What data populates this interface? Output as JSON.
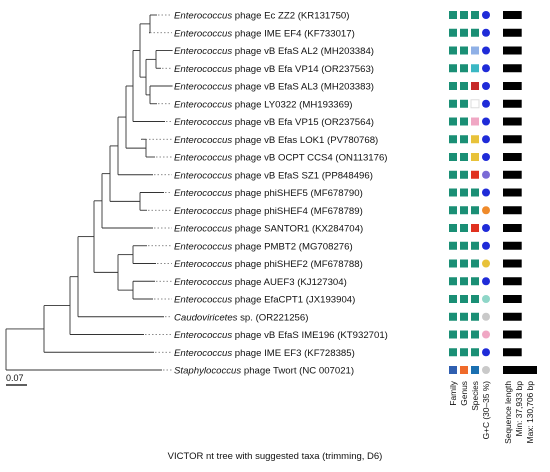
{
  "caption": "VICTOR nt tree with suggested taxa (trimming, D6)",
  "scale_bar": {
    "label": "0.07",
    "value": 0.07
  },
  "colors": {
    "family_teal": "#1a8f75",
    "family_outgroup": "#2f5fb0",
    "genus_teal": "#1a8f75",
    "genus_outgroup": "#ef6a2a",
    "gc_blue": "#1f2bd8",
    "gc_light": "#c9c9c9",
    "length_bar": "#000000"
  },
  "columns": {
    "family": "Family",
    "genus": "Genus",
    "species": "Species",
    "gc": "G+C (30–35 %)",
    "length": "Sequence length",
    "min": "Min: 37,933 bp",
    "max": "Max: 130,706 bp"
  },
  "taxa": [
    {
      "italic": "Enterococcus",
      "rest": " phage Ec ZZ2 (KR131750)",
      "species_color": "#1a8f75",
      "gc_color": "#1f2bd8",
      "length": 0.55
    },
    {
      "italic": "Enterococcus",
      "rest": " phage IME EF4 (KF733017)",
      "species_color": "#1a8f75",
      "gc_color": "#1f2bd8",
      "length": 0.55
    },
    {
      "italic": "Enterococcus",
      "rest": " phage vB EfaS AL2 (MH203384)",
      "species_color": "#8fb0e6",
      "gc_color": "#1f2bd8",
      "length": 0.55
    },
    {
      "italic": "Enterococcus",
      "rest": " phage vB Efa VP14 (OR237563)",
      "species_color": "#3bb8c4",
      "gc_color": "#1f2bd8",
      "length": 0.55
    },
    {
      "italic": "Enterococcus",
      "rest": " phage vB EfaS AL3 (MH203383)",
      "species_color": "#c62a2a",
      "gc_color": "#1f2bd8",
      "length": 0.55
    },
    {
      "italic": "Enterococcus",
      "rest": " phage LY0322 (MH193369)",
      "species_color": "#ffffff",
      "gc_color": "#1f2bd8",
      "length": 0.55
    },
    {
      "italic": "Enterococcus",
      "rest": " phage vB Efa VP15 (OR237564)",
      "species_color": "#f0a7c4",
      "gc_color": "#1f2bd8",
      "length": 0.55
    },
    {
      "italic": "Enterococcus",
      "rest": " phage vB Efas LOK1 (PV780768)",
      "species_color": "#e8c23a",
      "gc_color": "#1f2bd8",
      "length": 0.55
    },
    {
      "italic": "Enterococcus",
      "rest": " phage vB OCPT CCS4 (ON113176)",
      "species_color": "#e8c23a",
      "gc_color": "#1f2bd8",
      "length": 0.55
    },
    {
      "italic": "Enterococcus",
      "rest": " phage vB EfaS SZ1 (PP848496)",
      "species_color": "#e0311f",
      "gc_color": "#7a6bd6",
      "length": 0.55
    },
    {
      "italic": "Enterococcus",
      "rest": " phage phiSHEF5 (MF678790)",
      "species_color": "#1a8f75",
      "gc_color": "#1f2bd8",
      "length": 0.55
    },
    {
      "italic": "Enterococcus",
      "rest": " phage phiSHEF4 (MF678789)",
      "species_color": "#1a8f75",
      "gc_color": "#ef8a2a",
      "length": 0.55
    },
    {
      "italic": "Enterococcus",
      "rest": " phage SANTOR1 (KX284704)",
      "species_color": "#e0311f",
      "gc_color": "#1f2bd8",
      "length": 0.55
    },
    {
      "italic": "Enterococcus",
      "rest": " phage PMBT2 (MG708276)",
      "species_color": "#1a8f75",
      "gc_color": "#1f2bd8",
      "length": 0.55
    },
    {
      "italic": "Enterococcus",
      "rest": " phage phiSHEF2 (MF678788)",
      "species_color": "#1a8f75",
      "gc_color": "#e8c23a",
      "length": 0.55
    },
    {
      "italic": "Enterococcus",
      "rest": " phage AUEF3 (KJ127304)",
      "species_color": "#1a8f75",
      "gc_color": "#1f2bd8",
      "length": 0.55
    },
    {
      "italic": "Enterococcus",
      "rest": " phage EfaCPT1 (JX193904)",
      "species_color": "#1a8f75",
      "gc_color": "#8fd6c8",
      "length": 0.55
    },
    {
      "italic": "Caudoviricetes",
      "rest": " sp. (OR221256)",
      "species_color": "#1a8f75",
      "gc_color": "#c9c9c9",
      "length": 0.55
    },
    {
      "italic": "Enterococcus",
      "rest": " phage vB EfaS IME196 (KT932701)",
      "species_color": "#1a8f75",
      "gc_color": "#f0a7c4",
      "length": 0.55
    },
    {
      "italic": "Enterococcus",
      "rest": " phage IME EF3 (KF728385)",
      "species_color": "#1a8f75",
      "gc_color": "#1f2bd8",
      "length": 0.55
    },
    {
      "italic": "Staphylococcus",
      "rest": " phage Twort (NC 007021)",
      "species_color": "#1a6fb0",
      "gc_color": "#c9c9c9",
      "length": 1.0
    }
  ]
}
